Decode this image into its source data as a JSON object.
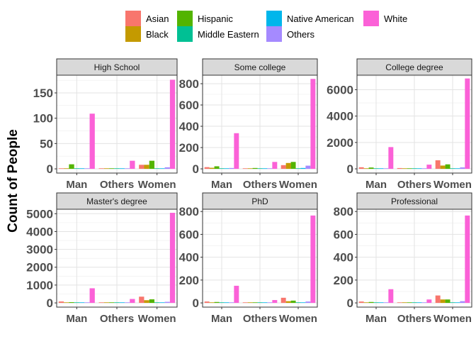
{
  "chart_data": {
    "type": "bar",
    "ylabel": "Count of People",
    "xlabel": "",
    "categories": [
      "Man",
      "Others",
      "Women"
    ],
    "legend": {
      "position": "top",
      "entries": [
        {
          "name": "Asian",
          "color": "#F8766D"
        },
        {
          "name": "Black",
          "color": "#C49A00"
        },
        {
          "name": "Hispanic",
          "color": "#53B400"
        },
        {
          "name": "Middle Eastern",
          "color": "#00C094"
        },
        {
          "name": "Native American",
          "color": "#00B6EB"
        },
        {
          "name": "Others",
          "color": "#A58AFF"
        },
        {
          "name": "White",
          "color": "#FB61D7"
        }
      ]
    },
    "grid": true,
    "panels": [
      {
        "title": "High School",
        "ylim": [
          0,
          185
        ],
        "yticks": [
          0,
          50,
          100,
          150
        ],
        "series": [
          {
            "name": "Asian",
            "values": [
              1,
              1,
              8
            ]
          },
          {
            "name": "Black",
            "values": [
              1,
              1,
              8
            ]
          },
          {
            "name": "Hispanic",
            "values": [
              9,
              1,
              16
            ]
          },
          {
            "name": "Middle Eastern",
            "values": [
              1,
              1,
              1
            ]
          },
          {
            "name": "Native American",
            "values": [
              1,
              1,
              1
            ]
          },
          {
            "name": "Others",
            "values": [
              1,
              1,
              3
            ]
          },
          {
            "name": "White",
            "values": [
              109,
              16,
              176
            ]
          }
        ]
      },
      {
        "title": "Some college",
        "ylim": [
          0,
          880
        ],
        "yticks": [
          0,
          200,
          400,
          600,
          800
        ],
        "series": [
          {
            "name": "Asian",
            "values": [
              16,
              5,
              35
            ]
          },
          {
            "name": "Black",
            "values": [
              10,
              5,
              55
            ]
          },
          {
            "name": "Hispanic",
            "values": [
              24,
              8,
              65
            ]
          },
          {
            "name": "Middle Eastern",
            "values": [
              3,
              2,
              2
            ]
          },
          {
            "name": "Native American",
            "values": [
              5,
              3,
              8
            ]
          },
          {
            "name": "Others",
            "values": [
              8,
              5,
              30
            ]
          },
          {
            "name": "White",
            "values": [
              335,
              65,
              845
            ]
          }
        ]
      },
      {
        "title": "College degree",
        "ylim": [
          0,
          7100
        ],
        "yticks": [
          0,
          2000,
          4000,
          6000
        ],
        "series": [
          {
            "name": "Asian",
            "values": [
              120,
              60,
              650
            ]
          },
          {
            "name": "Black",
            "values": [
              40,
              20,
              250
            ]
          },
          {
            "name": "Hispanic",
            "values": [
              100,
              30,
              340
            ]
          },
          {
            "name": "Middle Eastern",
            "values": [
              10,
              5,
              20
            ]
          },
          {
            "name": "Native American",
            "values": [
              15,
              5,
              30
            ]
          },
          {
            "name": "Others",
            "values": [
              40,
              20,
              110
            ]
          },
          {
            "name": "White",
            "values": [
              1650,
              320,
              6850
            ]
          }
        ]
      },
      {
        "title": "Master's degree",
        "ylim": [
          0,
          5250
        ],
        "yticks": [
          0,
          1000,
          2000,
          3000,
          4000,
          5000
        ],
        "series": [
          {
            "name": "Asian",
            "values": [
              80,
              30,
              350
            ]
          },
          {
            "name": "Black",
            "values": [
              20,
              10,
              150
            ]
          },
          {
            "name": "Hispanic",
            "values": [
              40,
              10,
              200
            ]
          },
          {
            "name": "Middle Eastern",
            "values": [
              10,
              3,
              20
            ]
          },
          {
            "name": "Native American",
            "values": [
              10,
              3,
              20
            ]
          },
          {
            "name": "Others",
            "values": [
              20,
              10,
              60
            ]
          },
          {
            "name": "White",
            "values": [
              820,
              220,
              5050
            ]
          }
        ]
      },
      {
        "title": "PhD",
        "ylim": [
          0,
          820
        ],
        "yticks": [
          0,
          200,
          400,
          600,
          800
        ],
        "series": [
          {
            "name": "Asian",
            "values": [
              12,
              4,
              45
            ]
          },
          {
            "name": "Black",
            "values": [
              3,
              2,
              15
            ]
          },
          {
            "name": "Hispanic",
            "values": [
              8,
              3,
              20
            ]
          },
          {
            "name": "Middle Eastern",
            "values": [
              3,
              1,
              3
            ]
          },
          {
            "name": "Native American",
            "values": [
              3,
              1,
              3
            ]
          },
          {
            "name": "Others",
            "values": [
              5,
              3,
              12
            ]
          },
          {
            "name": "White",
            "values": [
              150,
              25,
              765
            ]
          }
        ]
      },
      {
        "title": "Professional",
        "ylim": [
          0,
          820
        ],
        "yticks": [
          0,
          200,
          400,
          600,
          800
        ],
        "series": [
          {
            "name": "Asian",
            "values": [
              12,
              4,
              65
            ]
          },
          {
            "name": "Black",
            "values": [
              5,
              2,
              30
            ]
          },
          {
            "name": "Hispanic",
            "values": [
              8,
              3,
              30
            ]
          },
          {
            "name": "Middle Eastern",
            "values": [
              3,
              1,
              3
            ]
          },
          {
            "name": "Native American",
            "values": [
              3,
              1,
              3
            ]
          },
          {
            "name": "Others",
            "values": [
              5,
              3,
              15
            ]
          },
          {
            "name": "White",
            "values": [
              120,
              30,
              765
            ]
          }
        ]
      }
    ]
  }
}
